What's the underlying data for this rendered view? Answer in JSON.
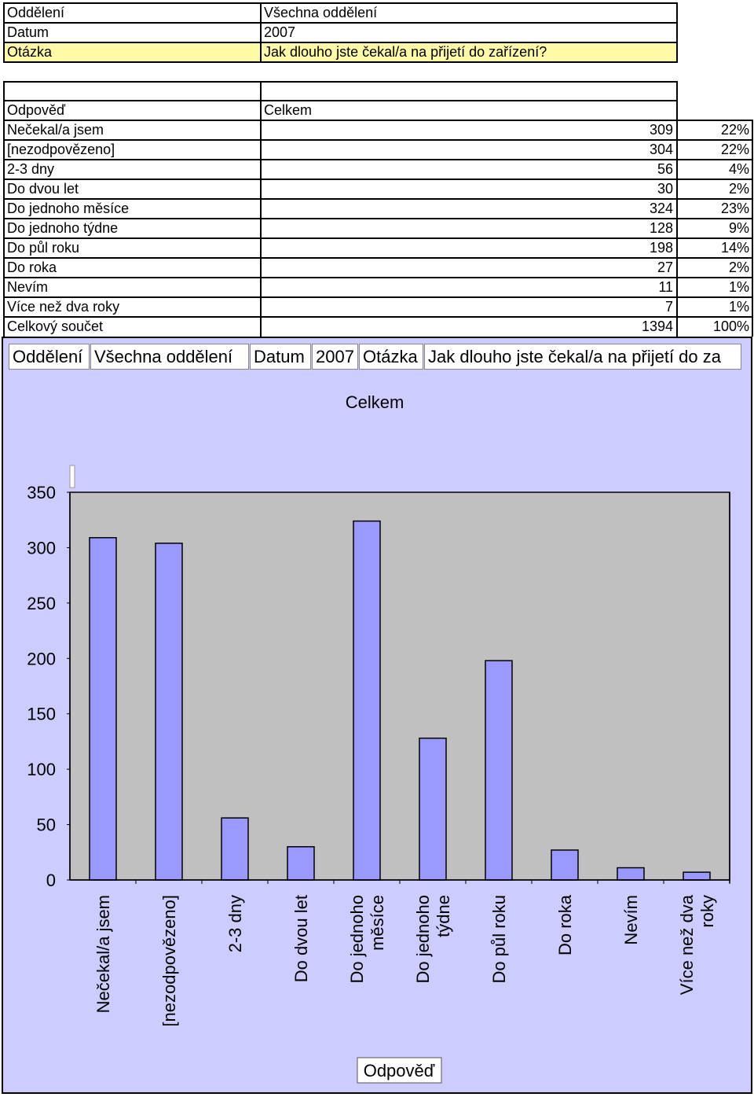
{
  "header": {
    "rows": [
      {
        "label": "Oddělení",
        "value": "Všechna oddělení"
      },
      {
        "label": "Datum",
        "value": "2007"
      },
      {
        "label": "Otázka",
        "value": "Jak dlouho jste čekal/a na přijetí do zařízení?"
      }
    ]
  },
  "table": {
    "col_answer": "Odpověď",
    "col_total": "Celkem",
    "rows": [
      {
        "label": " Nečekal/a jsem",
        "count": "309",
        "pct": "22%"
      },
      {
        "label": "[nezodpovězeno]",
        "count": "304",
        "pct": "22%"
      },
      {
        "label": "2-3 dny",
        "count": "56",
        "pct": "4%"
      },
      {
        "label": "Do dvou let",
        "count": "30",
        "pct": "2%"
      },
      {
        "label": "Do jednoho měsíce",
        "count": "324",
        "pct": "23%"
      },
      {
        "label": "Do jednoho týdne",
        "count": "128",
        "pct": "9%"
      },
      {
        "label": "Do půl roku",
        "count": "198",
        "pct": "14%"
      },
      {
        "label": "Do roka",
        "count": "27",
        "pct": "2%"
      },
      {
        "label": "Nevím",
        "count": "11",
        "pct": "1%"
      },
      {
        "label": "Více než dva roky",
        "count": "7",
        "pct": "1%"
      },
      {
        "label": "Celkový součet",
        "count": "1394",
        "pct": "100%"
      }
    ]
  },
  "chart_filters": {
    "f1": "Oddělení",
    "f2": "Všechna oddělení",
    "f3": "Datum",
    "f4": "2007",
    "f5": "Otázka",
    "f6": "Jak dlouho jste čekal/a na přijetí do za"
  },
  "chart_data": {
    "type": "bar",
    "title": "Celkem",
    "xlabel": "Odpověď",
    "ylabel": "",
    "ylim": [
      0,
      350
    ],
    "yticks": [
      "0",
      "50",
      "100",
      "150",
      "200",
      "250",
      "300",
      "350"
    ],
    "grid": false,
    "categories": [
      [
        "Nečekal/a jsem"
      ],
      [
        "[nezodpovězeno]"
      ],
      [
        "2-3 dny"
      ],
      [
        "Do dvou let"
      ],
      [
        "Do jednoho",
        "měsíce"
      ],
      [
        "Do jednoho",
        "týdne"
      ],
      [
        "Do půl roku"
      ],
      [
        "Do roka"
      ],
      [
        "Nevím"
      ],
      [
        "Více než dva",
        "roky"
      ]
    ],
    "values": [
      309,
      304,
      56,
      30,
      324,
      128,
      198,
      27,
      11,
      7
    ],
    "colors": {
      "bar": "#9999ff",
      "plot_bg": "#c0c0c0",
      "chart_bg": "#ccccff"
    }
  }
}
